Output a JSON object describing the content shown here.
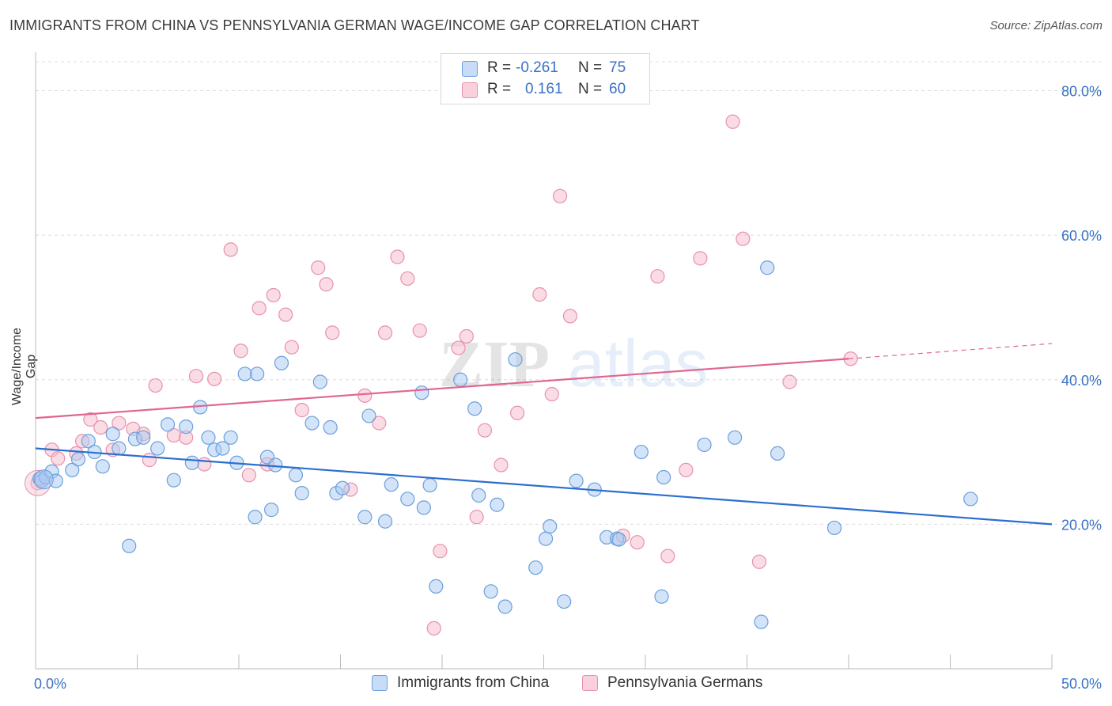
{
  "title": "IMMIGRANTS FROM CHINA VS PENNSYLVANIA GERMAN WAGE/INCOME GAP CORRELATION CHART",
  "source": "Source: ZipAtlas.com",
  "watermark": {
    "part1": "ZIP",
    "part2": "atlas"
  },
  "legend": {
    "rows": [
      {
        "r_label": "R =",
        "r_value": "-0.261",
        "n_label": "N =",
        "n_value": "75",
        "color": "#a9c9f2"
      },
      {
        "r_label": "R =",
        "r_value": "0.161",
        "n_label": "N =",
        "n_value": "60",
        "color": "#f5b8cb"
      }
    ]
  },
  "colors": {
    "china_fill": "#a9c9f2",
    "china_stroke": "#6b9fdc",
    "china_line": "#2b6fcf",
    "pg_fill": "#f5c0d0",
    "pg_stroke": "#e891ad",
    "pg_line": "#e06690",
    "axis_text": "#3a72c4",
    "grid": "#dddddd"
  },
  "chart_data": {
    "type": "scatter",
    "title": "IMMIGRANTS FROM CHINA VS PENNSYLVANIA GERMAN WAGE/INCOME GAP CORRELATION CHART",
    "xlabel": "",
    "ylabel": "Wage/Income Gap",
    "xlim": [
      0,
      50
    ],
    "ylim": [
      0,
      84
    ],
    "x_tick_labels": [
      "0.0%",
      "50.0%"
    ],
    "y_ticks": [
      20,
      40,
      60,
      80
    ],
    "y_tick_labels": [
      "20.0%",
      "40.0%",
      "60.0%",
      "80.0%"
    ],
    "grid": true,
    "legend_position": "top-center",
    "series": [
      {
        "name": "Immigrants from China",
        "r": -0.261,
        "n": 75,
        "trend": {
          "x": [
            0,
            50
          ],
          "y": [
            30.5,
            20.0
          ]
        },
        "points": [
          [
            0.2,
            26.3
          ],
          [
            0.3,
            26.0
          ],
          [
            0.5,
            26.5
          ],
          [
            0.8,
            27.3
          ],
          [
            1.0,
            26.0
          ],
          [
            1.8,
            27.5
          ],
          [
            2.1,
            29.0
          ],
          [
            2.6,
            31.5
          ],
          [
            2.9,
            30.0
          ],
          [
            3.3,
            28.0
          ],
          [
            3.8,
            32.5
          ],
          [
            4.1,
            30.5
          ],
          [
            4.6,
            17.0
          ],
          [
            4.9,
            31.8
          ],
          [
            5.3,
            32.0
          ],
          [
            6.0,
            30.5
          ],
          [
            6.8,
            26.1
          ],
          [
            6.5,
            33.8
          ],
          [
            7.4,
            33.5
          ],
          [
            7.7,
            28.5
          ],
          [
            8.1,
            36.2
          ],
          [
            8.5,
            32.0
          ],
          [
            8.8,
            30.3
          ],
          [
            9.2,
            30.5
          ],
          [
            9.6,
            32.0
          ],
          [
            9.9,
            28.5
          ],
          [
            10.3,
            40.8
          ],
          [
            10.8,
            21.0
          ],
          [
            10.9,
            40.8
          ],
          [
            11.4,
            29.3
          ],
          [
            11.6,
            22.0
          ],
          [
            11.8,
            28.2
          ],
          [
            12.1,
            42.3
          ],
          [
            12.8,
            26.8
          ],
          [
            13.1,
            24.3
          ],
          [
            13.6,
            34.0
          ],
          [
            14.0,
            39.7
          ],
          [
            14.5,
            33.4
          ],
          [
            14.8,
            24.3
          ],
          [
            15.1,
            25.0
          ],
          [
            16.2,
            21.0
          ],
          [
            16.4,
            35.0
          ],
          [
            17.2,
            20.4
          ],
          [
            17.5,
            25.5
          ],
          [
            18.3,
            23.5
          ],
          [
            19.0,
            38.2
          ],
          [
            19.1,
            22.3
          ],
          [
            19.4,
            25.4
          ],
          [
            19.7,
            11.4
          ],
          [
            20.9,
            40.0
          ],
          [
            21.6,
            36.0
          ],
          [
            21.8,
            24.0
          ],
          [
            22.4,
            10.7
          ],
          [
            22.7,
            22.7
          ],
          [
            23.1,
            8.6
          ],
          [
            23.6,
            42.8
          ],
          [
            24.6,
            14.0
          ],
          [
            25.1,
            18.0
          ],
          [
            25.3,
            19.7
          ],
          [
            26.0,
            9.3
          ],
          [
            26.6,
            26.0
          ],
          [
            27.5,
            24.8
          ],
          [
            28.1,
            18.2
          ],
          [
            28.6,
            18.0
          ],
          [
            28.7,
            17.9
          ],
          [
            29.8,
            30.0
          ],
          [
            30.8,
            10.0
          ],
          [
            30.9,
            26.5
          ],
          [
            32.9,
            31.0
          ],
          [
            34.4,
            32.0
          ],
          [
            35.7,
            6.5
          ],
          [
            36.0,
            55.5
          ],
          [
            36.5,
            29.8
          ],
          [
            39.3,
            19.5
          ],
          [
            46.0,
            23.5
          ]
        ]
      },
      {
        "name": "Pennsylvania Germans",
        "r": 0.161,
        "n": 60,
        "trend": {
          "x": [
            0,
            40
          ],
          "y": [
            34.7,
            42.9
          ],
          "dashed_to": {
            "x": 50,
            "y": 45.0
          }
        },
        "points": [
          [
            0.1,
            25.7
          ],
          [
            0.8,
            30.3
          ],
          [
            1.1,
            29.1
          ],
          [
            2.0,
            29.8
          ],
          [
            2.3,
            31.5
          ],
          [
            2.7,
            34.5
          ],
          [
            3.2,
            33.4
          ],
          [
            3.8,
            30.3
          ],
          [
            4.1,
            34.0
          ],
          [
            4.8,
            33.2
          ],
          [
            5.3,
            32.5
          ],
          [
            5.6,
            28.9
          ],
          [
            5.9,
            39.2
          ],
          [
            6.8,
            32.3
          ],
          [
            7.4,
            32.0
          ],
          [
            7.9,
            40.5
          ],
          [
            8.3,
            28.3
          ],
          [
            8.8,
            40.1
          ],
          [
            9.6,
            58.0
          ],
          [
            10.1,
            44.0
          ],
          [
            10.5,
            26.8
          ],
          [
            11.0,
            49.9
          ],
          [
            11.4,
            28.3
          ],
          [
            11.7,
            51.7
          ],
          [
            12.3,
            49.0
          ],
          [
            12.6,
            44.5
          ],
          [
            13.1,
            35.8
          ],
          [
            13.9,
            55.5
          ],
          [
            14.3,
            53.2
          ],
          [
            14.6,
            46.5
          ],
          [
            15.5,
            24.8
          ],
          [
            16.2,
            37.8
          ],
          [
            16.9,
            34.0
          ],
          [
            17.2,
            46.5
          ],
          [
            17.8,
            57.0
          ],
          [
            18.3,
            54.0
          ],
          [
            18.9,
            46.8
          ],
          [
            19.9,
            16.3
          ],
          [
            19.6,
            5.6
          ],
          [
            20.8,
            44.4
          ],
          [
            21.2,
            46.0
          ],
          [
            21.7,
            21.0
          ],
          [
            22.1,
            33.0
          ],
          [
            22.9,
            28.2
          ],
          [
            23.7,
            35.4
          ],
          [
            24.8,
            51.8
          ],
          [
            25.4,
            38.0
          ],
          [
            25.8,
            65.4
          ],
          [
            26.3,
            48.8
          ],
          [
            28.9,
            18.4
          ],
          [
            29.6,
            17.5
          ],
          [
            30.6,
            54.3
          ],
          [
            31.1,
            15.6
          ],
          [
            32.0,
            27.5
          ],
          [
            32.7,
            56.8
          ],
          [
            34.3,
            75.7
          ],
          [
            34.8,
            59.5
          ],
          [
            35.6,
            14.8
          ],
          [
            37.1,
            39.7
          ],
          [
            40.1,
            42.9
          ]
        ]
      }
    ]
  }
}
